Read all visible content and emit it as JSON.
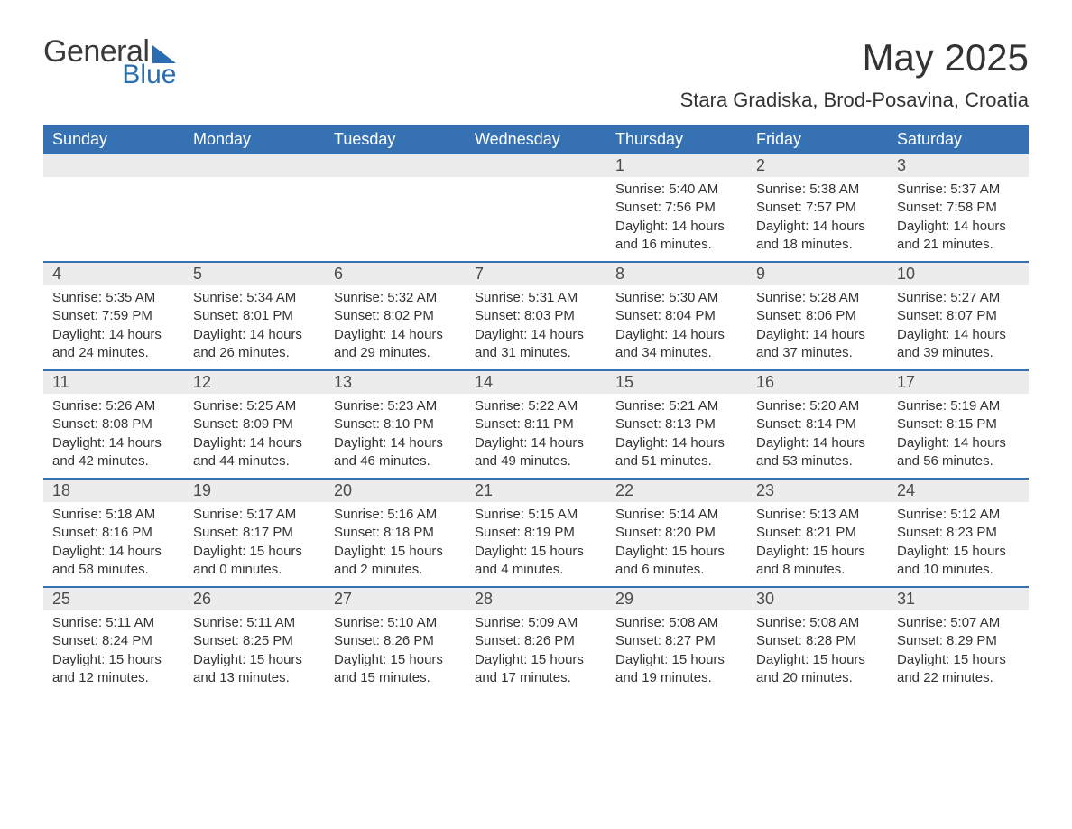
{
  "logo": {
    "word1": "General",
    "word2": "Blue"
  },
  "title": "May 2025",
  "location": "Stara Gradiska, Brod-Posavina, Croatia",
  "colors": {
    "header_bg": "#3571b3",
    "header_text": "#ffffff",
    "daynum_bg": "#ececec",
    "daynum_text": "#4b4b4b",
    "body_text": "#333333",
    "row_border": "#3571b3",
    "logo_accent": "#2a6db0",
    "page_bg": "#ffffff"
  },
  "typography": {
    "title_fontsize": 42,
    "location_fontsize": 22,
    "dow_fontsize": 18,
    "daynum_fontsize": 18,
    "body_fontsize": 15,
    "font_family": "Arial"
  },
  "layout": {
    "columns": 7,
    "rows": 5,
    "first_day_index": 4
  },
  "dow": [
    "Sunday",
    "Monday",
    "Tuesday",
    "Wednesday",
    "Thursday",
    "Friday",
    "Saturday"
  ],
  "days": [
    {
      "n": 1,
      "sunrise": "5:40 AM",
      "sunset": "7:56 PM",
      "daylight": "14 hours and 16 minutes."
    },
    {
      "n": 2,
      "sunrise": "5:38 AM",
      "sunset": "7:57 PM",
      "daylight": "14 hours and 18 minutes."
    },
    {
      "n": 3,
      "sunrise": "5:37 AM",
      "sunset": "7:58 PM",
      "daylight": "14 hours and 21 minutes."
    },
    {
      "n": 4,
      "sunrise": "5:35 AM",
      "sunset": "7:59 PM",
      "daylight": "14 hours and 24 minutes."
    },
    {
      "n": 5,
      "sunrise": "5:34 AM",
      "sunset": "8:01 PM",
      "daylight": "14 hours and 26 minutes."
    },
    {
      "n": 6,
      "sunrise": "5:32 AM",
      "sunset": "8:02 PM",
      "daylight": "14 hours and 29 minutes."
    },
    {
      "n": 7,
      "sunrise": "5:31 AM",
      "sunset": "8:03 PM",
      "daylight": "14 hours and 31 minutes."
    },
    {
      "n": 8,
      "sunrise": "5:30 AM",
      "sunset": "8:04 PM",
      "daylight": "14 hours and 34 minutes."
    },
    {
      "n": 9,
      "sunrise": "5:28 AM",
      "sunset": "8:06 PM",
      "daylight": "14 hours and 37 minutes."
    },
    {
      "n": 10,
      "sunrise": "5:27 AM",
      "sunset": "8:07 PM",
      "daylight": "14 hours and 39 minutes."
    },
    {
      "n": 11,
      "sunrise": "5:26 AM",
      "sunset": "8:08 PM",
      "daylight": "14 hours and 42 minutes."
    },
    {
      "n": 12,
      "sunrise": "5:25 AM",
      "sunset": "8:09 PM",
      "daylight": "14 hours and 44 minutes."
    },
    {
      "n": 13,
      "sunrise": "5:23 AM",
      "sunset": "8:10 PM",
      "daylight": "14 hours and 46 minutes."
    },
    {
      "n": 14,
      "sunrise": "5:22 AM",
      "sunset": "8:11 PM",
      "daylight": "14 hours and 49 minutes."
    },
    {
      "n": 15,
      "sunrise": "5:21 AM",
      "sunset": "8:13 PM",
      "daylight": "14 hours and 51 minutes."
    },
    {
      "n": 16,
      "sunrise": "5:20 AM",
      "sunset": "8:14 PM",
      "daylight": "14 hours and 53 minutes."
    },
    {
      "n": 17,
      "sunrise": "5:19 AM",
      "sunset": "8:15 PM",
      "daylight": "14 hours and 56 minutes."
    },
    {
      "n": 18,
      "sunrise": "5:18 AM",
      "sunset": "8:16 PM",
      "daylight": "14 hours and 58 minutes."
    },
    {
      "n": 19,
      "sunrise": "5:17 AM",
      "sunset": "8:17 PM",
      "daylight": "15 hours and 0 minutes."
    },
    {
      "n": 20,
      "sunrise": "5:16 AM",
      "sunset": "8:18 PM",
      "daylight": "15 hours and 2 minutes."
    },
    {
      "n": 21,
      "sunrise": "5:15 AM",
      "sunset": "8:19 PM",
      "daylight": "15 hours and 4 minutes."
    },
    {
      "n": 22,
      "sunrise": "5:14 AM",
      "sunset": "8:20 PM",
      "daylight": "15 hours and 6 minutes."
    },
    {
      "n": 23,
      "sunrise": "5:13 AM",
      "sunset": "8:21 PM",
      "daylight": "15 hours and 8 minutes."
    },
    {
      "n": 24,
      "sunrise": "5:12 AM",
      "sunset": "8:23 PM",
      "daylight": "15 hours and 10 minutes."
    },
    {
      "n": 25,
      "sunrise": "5:11 AM",
      "sunset": "8:24 PM",
      "daylight": "15 hours and 12 minutes."
    },
    {
      "n": 26,
      "sunrise": "5:11 AM",
      "sunset": "8:25 PM",
      "daylight": "15 hours and 13 minutes."
    },
    {
      "n": 27,
      "sunrise": "5:10 AM",
      "sunset": "8:26 PM",
      "daylight": "15 hours and 15 minutes."
    },
    {
      "n": 28,
      "sunrise": "5:09 AM",
      "sunset": "8:26 PM",
      "daylight": "15 hours and 17 minutes."
    },
    {
      "n": 29,
      "sunrise": "5:08 AM",
      "sunset": "8:27 PM",
      "daylight": "15 hours and 19 minutes."
    },
    {
      "n": 30,
      "sunrise": "5:08 AM",
      "sunset": "8:28 PM",
      "daylight": "15 hours and 20 minutes."
    },
    {
      "n": 31,
      "sunrise": "5:07 AM",
      "sunset": "8:29 PM",
      "daylight": "15 hours and 22 minutes."
    }
  ],
  "labels": {
    "sunrise": "Sunrise:",
    "sunset": "Sunset:",
    "daylight": "Daylight:"
  }
}
